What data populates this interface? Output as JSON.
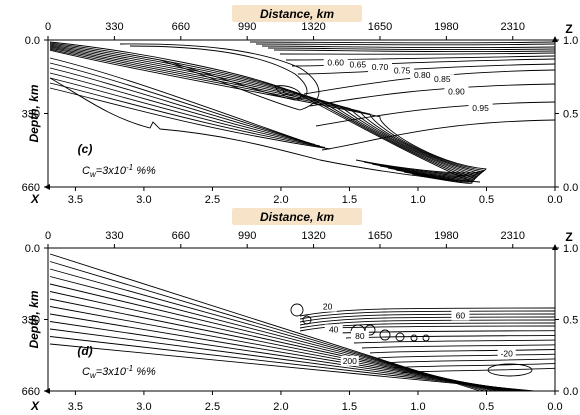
{
  "colors": {
    "title_bg": "#f7e3c8",
    "line": "#000000"
  },
  "chart_data": [
    {
      "type": "contour",
      "panel_label": "(c)",
      "title": "Distance, km",
      "ylabel": "Depth, km",
      "right_axis_label": "Z",
      "bottom_axis_label": "X",
      "annotation": {
        "prefix": "C",
        "subscript": "w",
        "text": "=3x10",
        "exponent": "-1",
        "suffix": " %%"
      },
      "x_ticks": [
        "0",
        "330",
        "660",
        "990",
        "1320",
        "1650",
        "1980",
        "2310"
      ],
      "x_tick_values": [
        0,
        330,
        660,
        990,
        1320,
        1650,
        1980,
        2310
      ],
      "xlim": [
        0,
        2520
      ],
      "y_ticks": [
        "0.0",
        "330",
        "660"
      ],
      "y_tick_values": [
        0,
        330,
        660
      ],
      "ylim": [
        0,
        660
      ],
      "z_ticks": [
        "1.0",
        "0.5",
        "0.0"
      ],
      "z_tick_values": [
        1.0,
        0.5,
        0.0
      ],
      "bottom_ticks": [
        "3.5",
        "3.0",
        "2.5",
        "2.0",
        "1.5",
        "1.0",
        "0.5",
        "0.0"
      ],
      "bottom_tick_values": [
        3.5,
        3.0,
        2.5,
        2.0,
        1.5,
        1.0,
        0.5,
        0.0
      ],
      "contour_labels": [
        {
          "text": "0.60",
          "x": 1430,
          "depth": 110
        },
        {
          "text": "0.65",
          "x": 1540,
          "depth": 120
        },
        {
          "text": "0.70",
          "x": 1650,
          "depth": 130
        },
        {
          "text": "0.75",
          "x": 1760,
          "depth": 145
        },
        {
          "text": "0.80",
          "x": 1860,
          "depth": 165
        },
        {
          "text": "0.85",
          "x": 1960,
          "depth": 185
        },
        {
          "text": "0.90",
          "x": 2030,
          "depth": 240
        },
        {
          "text": "0.95",
          "x": 2150,
          "depth": 315
        }
      ]
    },
    {
      "type": "contour",
      "panel_label": "(d)",
      "title": "Distance, km",
      "ylabel": "Depth, km",
      "right_axis_label": "Z",
      "bottom_axis_label": "X",
      "annotation": {
        "prefix": "C",
        "subscript": "w",
        "text": "=3x10",
        "exponent": "-1",
        "suffix": " %%"
      },
      "x_ticks": [
        "0",
        "330",
        "660",
        "990",
        "1320",
        "1650",
        "1980",
        "2310"
      ],
      "x_tick_values": [
        0,
        330,
        660,
        990,
        1320,
        1650,
        1980,
        2310
      ],
      "xlim": [
        0,
        2520
      ],
      "y_ticks": [
        "0.0",
        "330",
        "660"
      ],
      "y_tick_values": [
        0,
        330,
        660
      ],
      "ylim": [
        0,
        660
      ],
      "z_ticks": [
        "1.0",
        "0.5",
        "0.0"
      ],
      "z_tick_values": [
        1.0,
        0.5,
        0.0
      ],
      "bottom_ticks": [
        "3.5",
        "3.0",
        "2.5",
        "2.0",
        "1.5",
        "1.0",
        "0.5",
        "0.0"
      ],
      "bottom_tick_values": [
        3.5,
        3.0,
        2.5,
        2.0,
        1.5,
        1.0,
        0.5,
        0.0
      ],
      "contour_labels": [
        {
          "text": "20",
          "x": 1390,
          "depth": 280
        },
        {
          "text": "60",
          "x": 2050,
          "depth": 320
        },
        {
          "text": "40",
          "x": 1420,
          "depth": 385
        },
        {
          "text": "80",
          "x": 1550,
          "depth": 415
        },
        {
          "text": "-20",
          "x": 2280,
          "depth": 495
        },
        {
          "text": "200",
          "x": 1500,
          "depth": 530
        }
      ]
    }
  ]
}
